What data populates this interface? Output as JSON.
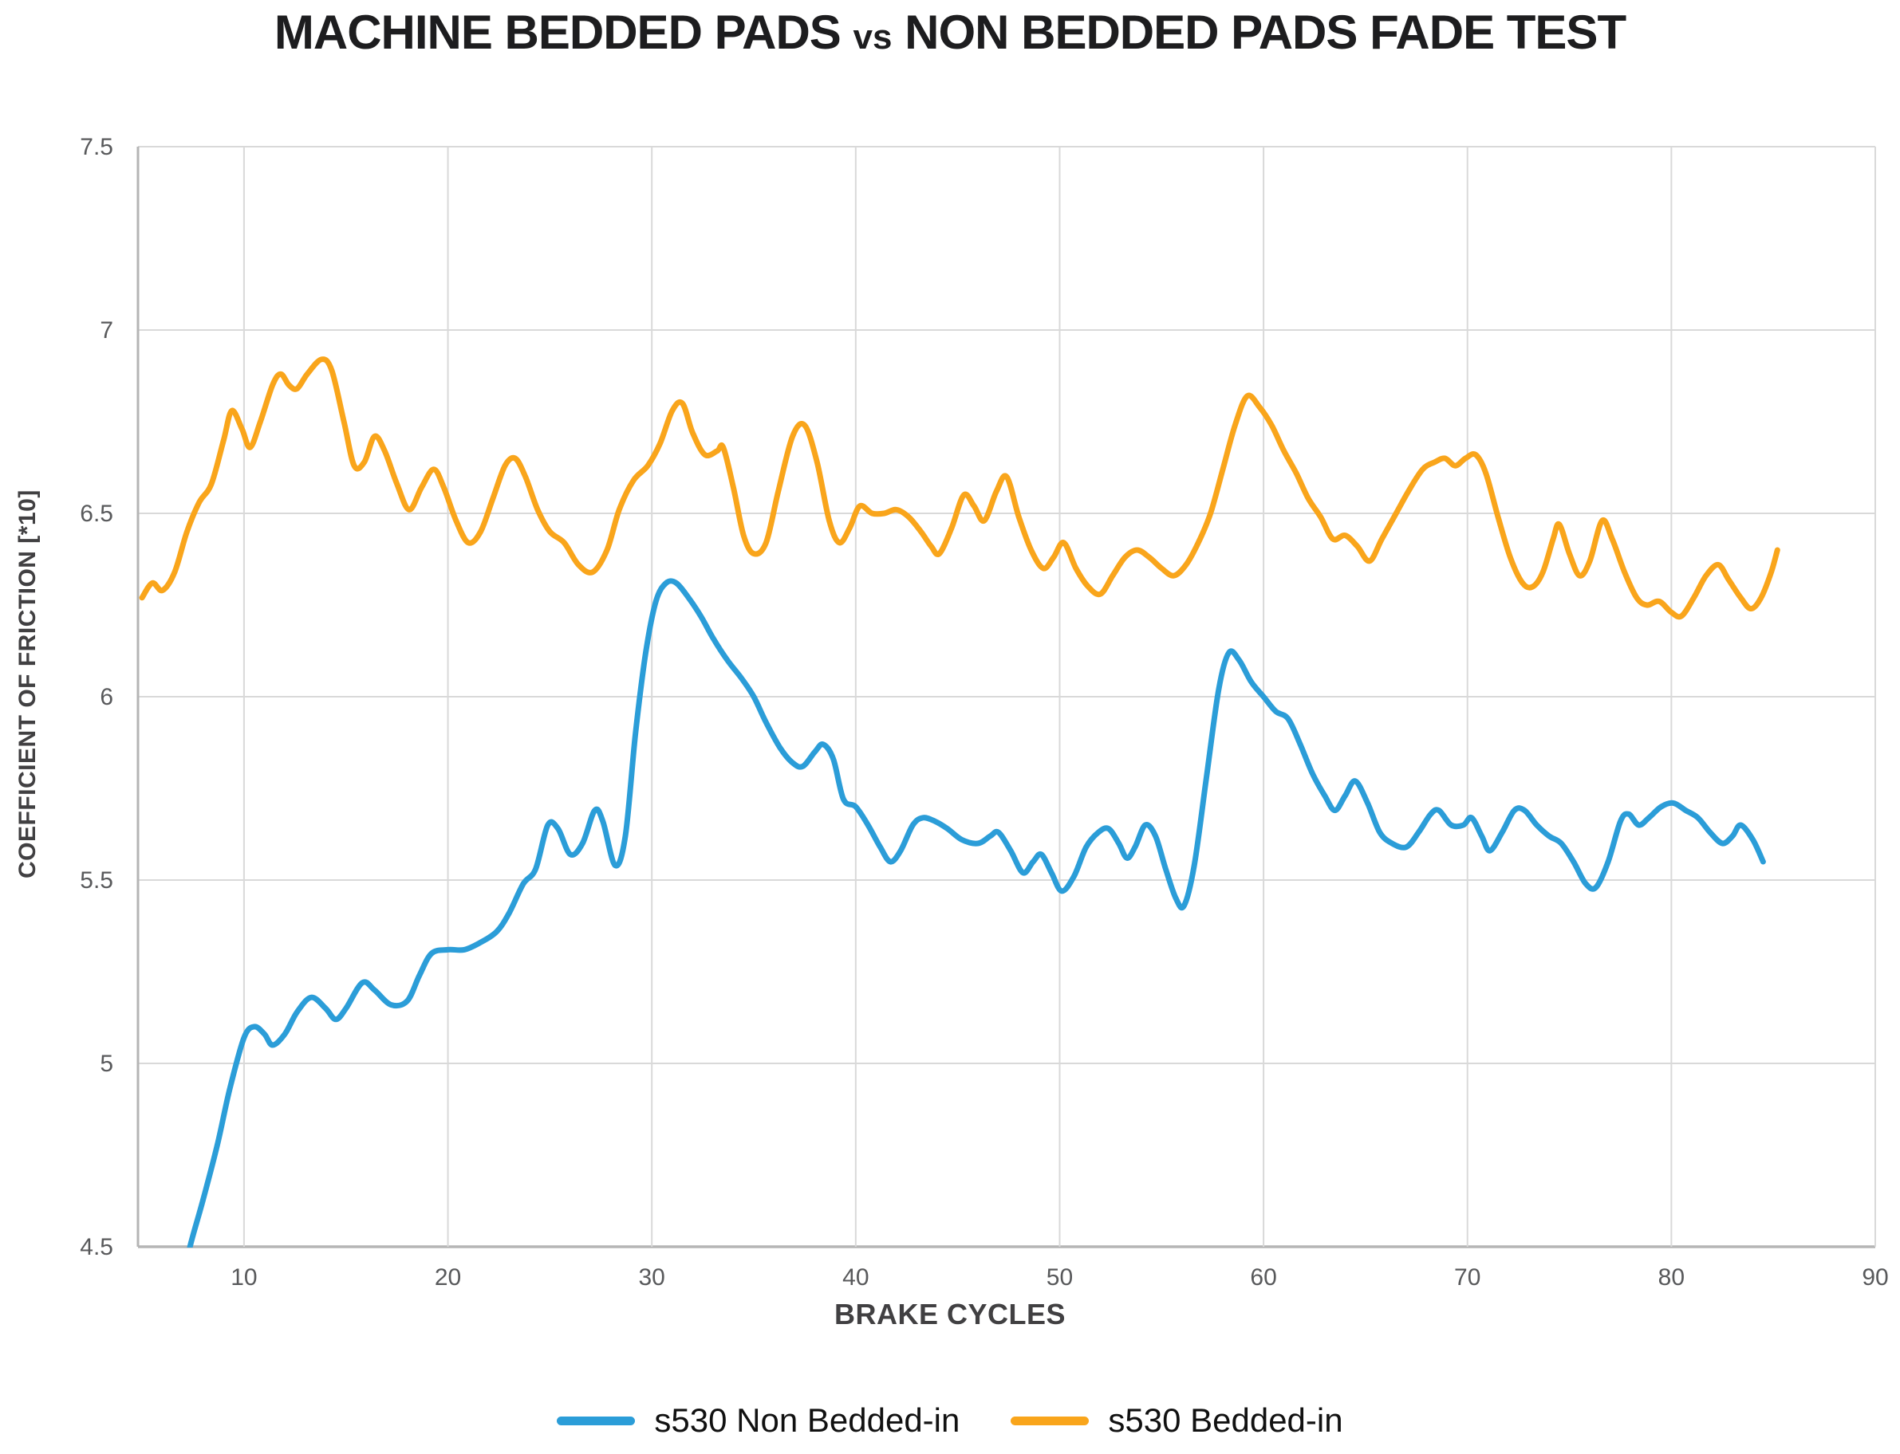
{
  "title": {
    "prefix": "MACHINE BEDDED PADS",
    "separator": "vs",
    "suffix": "NON BEDDED PADS FADE TEST"
  },
  "colors": {
    "background": "#ffffff",
    "grid": "#d9d9d9",
    "axis": "#b5b5b5",
    "tick_text": "#58595b",
    "axis_title_text": "#414042",
    "title_text": "#1d1d1f",
    "non_bedded_blue": "#2b9dd8",
    "bedded_orange": "#f9a51b"
  },
  "chart_data": {
    "type": "line",
    "title": "MACHINE BEDDED PADS vs NON BEDDED PADS FADE TEST",
    "xlabel": "BRAKE CYCLES",
    "ylabel": "COEFFICIENT OF FRICTION [*10]",
    "xlim": [
      4.8,
      90
    ],
    "ylim": [
      4.5,
      7.5
    ],
    "x_ticks": [
      10,
      20,
      30,
      40,
      50,
      60,
      70,
      80,
      90
    ],
    "y_ticks": [
      7.5,
      7,
      6.5,
      6,
      5.5,
      5,
      4.5
    ],
    "grid": true,
    "legend_position": "bottom",
    "series": [
      {
        "name": "s530 Non Bedded-in",
        "color": "#2b9dd8",
        "points": [
          [
            7.2,
            4.44
          ],
          [
            7.35,
            4.5
          ],
          [
            8,
            4.63
          ],
          [
            8.7,
            4.78
          ],
          [
            9.3,
            4.93
          ],
          [
            10,
            5.07
          ],
          [
            10.5,
            5.1
          ],
          [
            11,
            5.08
          ],
          [
            11.4,
            5.05
          ],
          [
            12,
            5.08
          ],
          [
            12.6,
            5.14
          ],
          [
            13.3,
            5.18
          ],
          [
            14,
            5.15
          ],
          [
            14.5,
            5.12
          ],
          [
            15,
            5.15
          ],
          [
            15.8,
            5.22
          ],
          [
            16.4,
            5.2
          ],
          [
            17.2,
            5.16
          ],
          [
            18,
            5.17
          ],
          [
            18.6,
            5.24
          ],
          [
            19.2,
            5.3
          ],
          [
            20,
            5.31
          ],
          [
            20.8,
            5.31
          ],
          [
            21.6,
            5.33
          ],
          [
            22.4,
            5.36
          ],
          [
            23,
            5.41
          ],
          [
            23.7,
            5.49
          ],
          [
            24.3,
            5.53
          ],
          [
            24.9,
            5.65
          ],
          [
            25.4,
            5.64
          ],
          [
            26,
            5.57
          ],
          [
            26.6,
            5.6
          ],
          [
            27.2,
            5.69
          ],
          [
            27.6,
            5.66
          ],
          [
            28.2,
            5.54
          ],
          [
            28.7,
            5.62
          ],
          [
            29.2,
            5.9
          ],
          [
            29.7,
            6.12
          ],
          [
            30.2,
            6.26
          ],
          [
            30.7,
            6.31
          ],
          [
            31.2,
            6.31
          ],
          [
            31.8,
            6.27
          ],
          [
            32.4,
            6.22
          ],
          [
            33,
            6.16
          ],
          [
            33.7,
            6.1
          ],
          [
            34.4,
            6.05
          ],
          [
            35,
            6.0
          ],
          [
            35.6,
            5.93
          ],
          [
            36.3,
            5.86
          ],
          [
            36.9,
            5.82
          ],
          [
            37.4,
            5.81
          ],
          [
            38,
            5.85
          ],
          [
            38.4,
            5.87
          ],
          [
            38.9,
            5.83
          ],
          [
            39.4,
            5.72
          ],
          [
            40,
            5.7
          ],
          [
            40.6,
            5.65
          ],
          [
            41.2,
            5.59
          ],
          [
            41.7,
            5.55
          ],
          [
            42.2,
            5.58
          ],
          [
            42.8,
            5.65
          ],
          [
            43.3,
            5.67
          ],
          [
            43.9,
            5.66
          ],
          [
            44.5,
            5.64
          ],
          [
            45.2,
            5.61
          ],
          [
            46,
            5.6
          ],
          [
            46.6,
            5.62
          ],
          [
            47,
            5.63
          ],
          [
            47.6,
            5.58
          ],
          [
            48.2,
            5.52
          ],
          [
            48.7,
            5.55
          ],
          [
            49.1,
            5.57
          ],
          [
            49.6,
            5.52
          ],
          [
            50.1,
            5.47
          ],
          [
            50.7,
            5.51
          ],
          [
            51.3,
            5.59
          ],
          [
            51.9,
            5.63
          ],
          [
            52.4,
            5.64
          ],
          [
            52.9,
            5.6
          ],
          [
            53.3,
            5.56
          ],
          [
            53.7,
            5.59
          ],
          [
            54.2,
            5.65
          ],
          [
            54.7,
            5.62
          ],
          [
            55.2,
            5.53
          ],
          [
            55.7,
            5.45
          ],
          [
            56.1,
            5.43
          ],
          [
            56.6,
            5.54
          ],
          [
            57.2,
            5.78
          ],
          [
            57.8,
            6.02
          ],
          [
            58.3,
            6.12
          ],
          [
            58.8,
            6.1
          ],
          [
            59.4,
            6.04
          ],
          [
            60,
            6.0
          ],
          [
            60.6,
            5.96
          ],
          [
            61.2,
            5.94
          ],
          [
            61.8,
            5.87
          ],
          [
            62.4,
            5.79
          ],
          [
            63,
            5.73
          ],
          [
            63.5,
            5.69
          ],
          [
            64,
            5.73
          ],
          [
            64.5,
            5.77
          ],
          [
            65.1,
            5.71
          ],
          [
            65.7,
            5.63
          ],
          [
            66.3,
            5.6
          ],
          [
            67,
            5.59
          ],
          [
            67.6,
            5.63
          ],
          [
            68.2,
            5.68
          ],
          [
            68.6,
            5.69
          ],
          [
            69.2,
            5.65
          ],
          [
            69.8,
            5.65
          ],
          [
            70.2,
            5.67
          ],
          [
            70.7,
            5.62
          ],
          [
            71.1,
            5.58
          ],
          [
            71.7,
            5.63
          ],
          [
            72.3,
            5.69
          ],
          [
            72.8,
            5.69
          ],
          [
            73.4,
            5.65
          ],
          [
            74,
            5.62
          ],
          [
            74.6,
            5.6
          ],
          [
            75.2,
            5.55
          ],
          [
            75.8,
            5.49
          ],
          [
            76.3,
            5.48
          ],
          [
            76.9,
            5.55
          ],
          [
            77.5,
            5.66
          ],
          [
            77.9,
            5.68
          ],
          [
            78.4,
            5.65
          ],
          [
            78.9,
            5.67
          ],
          [
            79.5,
            5.7
          ],
          [
            80.1,
            5.71
          ],
          [
            80.7,
            5.69
          ],
          [
            81.3,
            5.67
          ],
          [
            81.9,
            5.63
          ],
          [
            82.5,
            5.6
          ],
          [
            83,
            5.62
          ],
          [
            83.4,
            5.65
          ],
          [
            84,
            5.61
          ],
          [
            84.5,
            5.55
          ]
        ]
      },
      {
        "name": "s530 Bedded-in",
        "color": "#f9a51b",
        "points": [
          [
            5,
            6.27
          ],
          [
            5.5,
            6.31
          ],
          [
            6,
            6.29
          ],
          [
            6.6,
            6.34
          ],
          [
            7.2,
            6.45
          ],
          [
            7.8,
            6.53
          ],
          [
            8.4,
            6.58
          ],
          [
            9,
            6.7
          ],
          [
            9.4,
            6.78
          ],
          [
            9.9,
            6.73
          ],
          [
            10.3,
            6.68
          ],
          [
            10.8,
            6.75
          ],
          [
            11.4,
            6.85
          ],
          [
            11.8,
            6.88
          ],
          [
            12.2,
            6.85
          ],
          [
            12.6,
            6.84
          ],
          [
            13.1,
            6.88
          ],
          [
            13.8,
            6.92
          ],
          [
            14.3,
            6.89
          ],
          [
            14.9,
            6.75
          ],
          [
            15.4,
            6.63
          ],
          [
            15.9,
            6.64
          ],
          [
            16.4,
            6.71
          ],
          [
            16.9,
            6.67
          ],
          [
            17.5,
            6.58
          ],
          [
            18.1,
            6.51
          ],
          [
            18.7,
            6.57
          ],
          [
            19.3,
            6.62
          ],
          [
            19.8,
            6.57
          ],
          [
            20.4,
            6.48
          ],
          [
            21,
            6.42
          ],
          [
            21.6,
            6.45
          ],
          [
            22.2,
            6.54
          ],
          [
            22.8,
            6.63
          ],
          [
            23.3,
            6.65
          ],
          [
            23.8,
            6.6
          ],
          [
            24.4,
            6.51
          ],
          [
            25,
            6.45
          ],
          [
            25.7,
            6.42
          ],
          [
            26.4,
            6.36
          ],
          [
            27.1,
            6.34
          ],
          [
            27.8,
            6.4
          ],
          [
            28.4,
            6.51
          ],
          [
            29.1,
            6.59
          ],
          [
            29.8,
            6.63
          ],
          [
            30.4,
            6.69
          ],
          [
            31,
            6.78
          ],
          [
            31.5,
            6.8
          ],
          [
            32,
            6.72
          ],
          [
            32.6,
            6.66
          ],
          [
            33.2,
            6.67
          ],
          [
            33.5,
            6.68
          ],
          [
            34,
            6.57
          ],
          [
            34.5,
            6.44
          ],
          [
            35,
            6.39
          ],
          [
            35.6,
            6.42
          ],
          [
            36.2,
            6.56
          ],
          [
            36.9,
            6.71
          ],
          [
            37.5,
            6.74
          ],
          [
            38.1,
            6.64
          ],
          [
            38.7,
            6.48
          ],
          [
            39.2,
            6.42
          ],
          [
            39.7,
            6.46
          ],
          [
            40.2,
            6.52
          ],
          [
            40.8,
            6.5
          ],
          [
            41.4,
            6.5
          ],
          [
            42,
            6.51
          ],
          [
            42.6,
            6.49
          ],
          [
            43.2,
            6.45
          ],
          [
            43.7,
            6.41
          ],
          [
            44.1,
            6.39
          ],
          [
            44.7,
            6.46
          ],
          [
            45.3,
            6.55
          ],
          [
            45.8,
            6.52
          ],
          [
            46.3,
            6.48
          ],
          [
            46.9,
            6.56
          ],
          [
            47.4,
            6.6
          ],
          [
            48,
            6.49
          ],
          [
            48.6,
            6.4
          ],
          [
            49.2,
            6.35
          ],
          [
            49.7,
            6.38
          ],
          [
            50.2,
            6.42
          ],
          [
            50.8,
            6.35
          ],
          [
            51.4,
            6.3
          ],
          [
            52,
            6.28
          ],
          [
            52.6,
            6.33
          ],
          [
            53.2,
            6.38
          ],
          [
            53.8,
            6.4
          ],
          [
            54.4,
            6.38
          ],
          [
            55,
            6.35
          ],
          [
            55.6,
            6.33
          ],
          [
            56.2,
            6.36
          ],
          [
            56.8,
            6.42
          ],
          [
            57.4,
            6.5
          ],
          [
            58,
            6.62
          ],
          [
            58.6,
            6.74
          ],
          [
            59.2,
            6.82
          ],
          [
            59.8,
            6.79
          ],
          [
            60.4,
            6.74
          ],
          [
            61,
            6.67
          ],
          [
            61.6,
            6.61
          ],
          [
            62.2,
            6.54
          ],
          [
            62.8,
            6.49
          ],
          [
            63.4,
            6.43
          ],
          [
            64,
            6.44
          ],
          [
            64.6,
            6.41
          ],
          [
            65.2,
            6.37
          ],
          [
            65.8,
            6.43
          ],
          [
            66.5,
            6.5
          ],
          [
            67.1,
            6.56
          ],
          [
            67.8,
            6.62
          ],
          [
            68.4,
            6.64
          ],
          [
            68.9,
            6.65
          ],
          [
            69.4,
            6.63
          ],
          [
            69.9,
            6.65
          ],
          [
            70.4,
            6.66
          ],
          [
            70.9,
            6.61
          ],
          [
            71.5,
            6.49
          ],
          [
            72.1,
            6.38
          ],
          [
            72.7,
            6.31
          ],
          [
            73.2,
            6.3
          ],
          [
            73.7,
            6.34
          ],
          [
            74.2,
            6.43
          ],
          [
            74.5,
            6.47
          ],
          [
            75,
            6.39
          ],
          [
            75.5,
            6.33
          ],
          [
            76,
            6.37
          ],
          [
            76.6,
            6.48
          ],
          [
            77.1,
            6.43
          ],
          [
            77.7,
            6.34
          ],
          [
            78.3,
            6.27
          ],
          [
            78.8,
            6.25
          ],
          [
            79.4,
            6.26
          ],
          [
            80,
            6.23
          ],
          [
            80.5,
            6.22
          ],
          [
            81.1,
            6.27
          ],
          [
            81.7,
            6.33
          ],
          [
            82.3,
            6.36
          ],
          [
            82.8,
            6.32
          ],
          [
            83.4,
            6.27
          ],
          [
            83.9,
            6.24
          ],
          [
            84.4,
            6.27
          ],
          [
            84.9,
            6.34
          ],
          [
            85.2,
            6.4
          ]
        ]
      }
    ]
  },
  "legend": {
    "items": [
      {
        "label": "s530 Non Bedded-in",
        "color": "#2b9dd8"
      },
      {
        "label": "s530 Bedded-in",
        "color": "#f9a51b"
      }
    ]
  }
}
